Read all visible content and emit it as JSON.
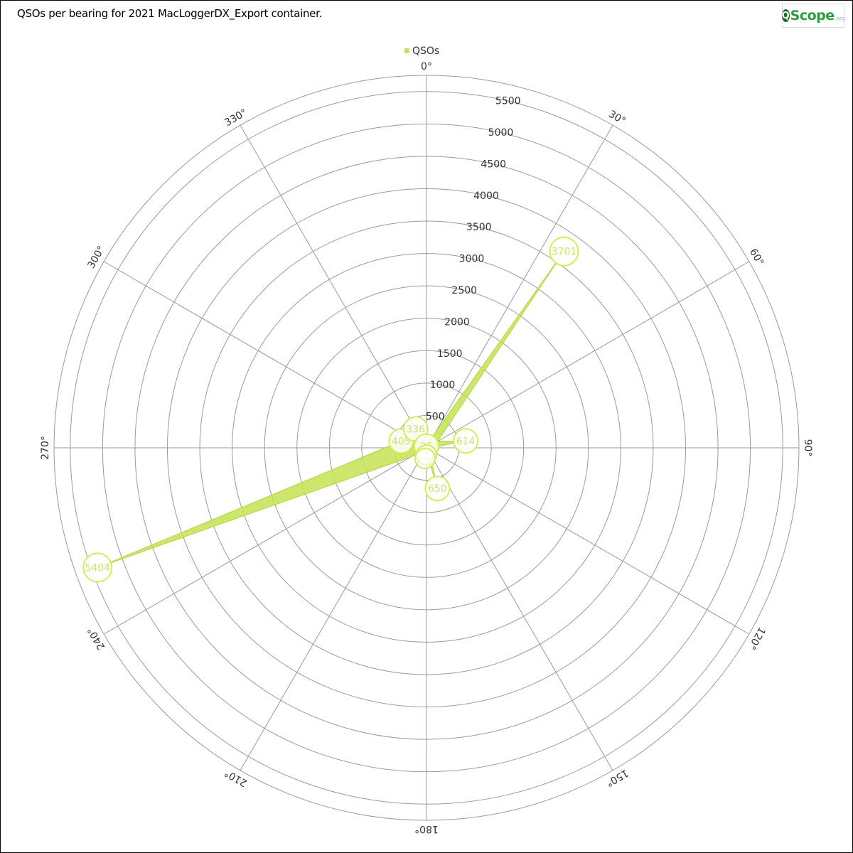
{
  "title": "QSOs per bearing for 2021 MacLoggerDX_Export container.",
  "logo": {
    "letter": "Q",
    "text": "Scope",
    "suffix": ".org"
  },
  "chart_data": {
    "type": "polar-area",
    "title": "QSOs per bearing for 2021 MacLoggerDX_Export container.",
    "series": [
      {
        "name": "QSOs",
        "color": "#c8e45c",
        "points": [
          {
            "bearing": 0,
            "value": 25
          },
          {
            "bearing": 10,
            "value": 40
          },
          {
            "bearing": 20,
            "value": 100
          },
          {
            "bearing": 35,
            "value": 3701
          },
          {
            "bearing": 60,
            "value": 200
          },
          {
            "bearing": 80,
            "value": 614
          },
          {
            "bearing": 100,
            "value": 40
          },
          {
            "bearing": 165,
            "value": 650
          },
          {
            "bearing": 180,
            "value": 60
          },
          {
            "bearing": 195,
            "value": 60
          },
          {
            "bearing": 250,
            "value": 5404
          },
          {
            "bearing": 285,
            "value": 405
          },
          {
            "bearing": 330,
            "value": 336
          }
        ]
      }
    ],
    "labels": [
      {
        "bearing": 35,
        "value": 3701,
        "text": "3701"
      },
      {
        "bearing": 80,
        "value": 614,
        "text": "614"
      },
      {
        "bearing": 165,
        "value": 650,
        "text": "650"
      },
      {
        "bearing": 250,
        "value": 5404,
        "text": "5404"
      },
      {
        "bearing": 285,
        "value": 405,
        "text": "405"
      },
      {
        "bearing": 330,
        "value": 336,
        "text": "336"
      },
      {
        "bearing": 0,
        "value": 25,
        "text": "25"
      }
    ],
    "radial_ticks": [
      500,
      1000,
      1500,
      2000,
      2500,
      3000,
      3500,
      4000,
      4500,
      5000,
      5500
    ],
    "radial_max": 5750,
    "angular_ticks": [
      "0°",
      "30°",
      "60°",
      "90°",
      "120°",
      "150°",
      "180°",
      "210°",
      "240°",
      "270°",
      "300°",
      "330°"
    ],
    "legend": {
      "label": "QSOs",
      "position": "top-center"
    }
  }
}
